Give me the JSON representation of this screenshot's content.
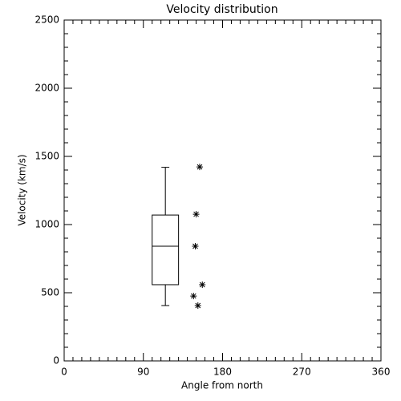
{
  "chart_data": {
    "type": "box",
    "title": "Velocity distribution",
    "x_label": "Angle from north",
    "y_label": "Velocity (km/s)",
    "boxes": [
      {
        "position": 115,
        "whislo": 406,
        "q1": 559,
        "med": 841,
        "q3": 1070,
        "whishi": 1420
      }
    ],
    "points": {
      "x": [
        154,
        150,
        149,
        157,
        147,
        152
      ],
      "y": [
        1423,
        1076,
        841,
        559,
        476,
        406
      ]
    },
    "color": "#000000",
    "xlim": [
      0,
      360
    ],
    "xticks": [
      0,
      90,
      180,
      270,
      360
    ],
    "ylim": [
      0,
      2500
    ],
    "yticks": [
      0,
      500,
      1000,
      1500,
      2000,
      2500
    ]
  }
}
